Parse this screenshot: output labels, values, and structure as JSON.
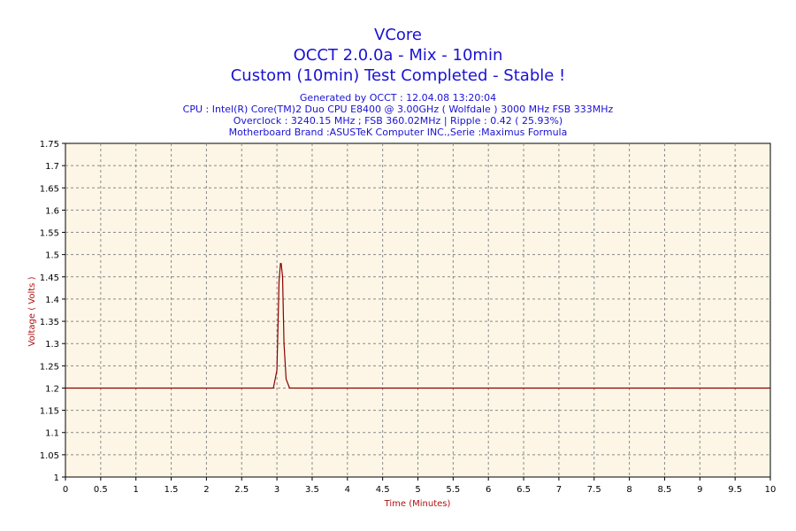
{
  "header": {
    "title": "VCore",
    "subtitle_1": "OCCT 2.0.0a - Mix - 10min",
    "subtitle_2": "Custom (10min) Test Completed - Stable !",
    "info": [
      "Generated by OCCT : 12.04.08 13:20:04",
      "CPU : Intel(R) Core(TM)2 Duo CPU E8400 @ 3.00GHz ( Wolfdale ) 3000 MHz FSB 333MHz",
      "Overclock : 3240.15 MHz ; FSB 360.02MHz | Ripple : 0.42 ( 25.93%)",
      "Motherboard Brand :ASUSTeK Computer INC.,Serie :Maximus Formula"
    ]
  },
  "colors": {
    "plot_background": "#fdf6e6",
    "line": "#8b0000",
    "title_text": "#1a12d4",
    "axis_label_text": "#b01010"
  },
  "chart_data": {
    "type": "line",
    "title": "VCore",
    "xlabel": "Time (Minutes)",
    "ylabel": "Voltage ( Volts )",
    "xlim": [
      0,
      10
    ],
    "ylim": [
      1,
      1.75
    ],
    "grid": true,
    "x_ticks": [
      "0",
      "0.5",
      "1",
      "1.5",
      "2",
      "2.5",
      "3",
      "3.5",
      "4",
      "4.5",
      "5",
      "5.5",
      "6",
      "6.5",
      "7",
      "7.5",
      "8",
      "8.5",
      "9",
      "9.5",
      "10"
    ],
    "y_ticks": [
      "1",
      "1.05",
      "1.1",
      "1.15",
      "1.2",
      "1.25",
      "1.3",
      "1.35",
      "1.4",
      "1.45",
      "1.5",
      "1.55",
      "1.6",
      "1.65",
      "1.7",
      "1.75"
    ],
    "series": [
      {
        "x": [
          0,
          2.95,
          3.0,
          3.03,
          3.05,
          3.06,
          3.08,
          3.1,
          3.13,
          3.18,
          3.2,
          10
        ],
        "y": [
          1.2,
          1.2,
          1.24,
          1.44,
          1.48,
          1.48,
          1.45,
          1.3,
          1.22,
          1.2,
          1.2,
          1.2
        ]
      }
    ]
  }
}
